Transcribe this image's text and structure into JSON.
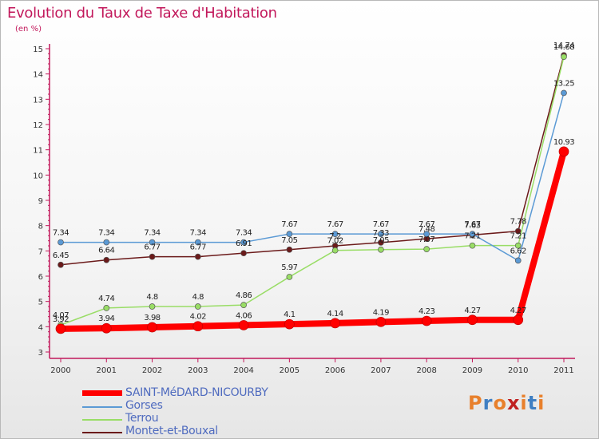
{
  "chart_data": {
    "type": "line",
    "title": "Evolution du Taux de Taxe d'Habitation",
    "unit_label": "(en %)",
    "x": [
      "2000",
      "2001",
      "2002",
      "2003",
      "2004",
      "2005",
      "2006",
      "2007",
      "2008",
      "2009",
      "2010",
      "2011"
    ],
    "ylim": [
      3,
      15
    ],
    "yticks": [
      3,
      4,
      5,
      6,
      7,
      8,
      9,
      10,
      11,
      12,
      13,
      14,
      15
    ],
    "grid": false,
    "legend_position": "bottom-left",
    "series": [
      {
        "name": "Montet-et-Bouxal",
        "color": "#6b1a1a",
        "values": [
          6.45,
          6.64,
          6.77,
          6.77,
          6.91,
          7.05,
          7.2,
          7.33,
          7.48,
          7.63,
          7.78,
          14.74
        ],
        "labels": [
          "6.45",
          "6.64",
          "6.77",
          "6.77",
          "6.91",
          "7.05",
          "7.2",
          "7.33",
          "7.48",
          "7.63",
          "7.78",
          "14.74"
        ]
      },
      {
        "name": "Terrou",
        "color": "#99dd66",
        "values": [
          4.07,
          4.74,
          4.8,
          4.8,
          4.86,
          5.97,
          7.02,
          7.05,
          7.07,
          7.21,
          7.21,
          14.68
        ],
        "labels": [
          "4.07",
          "4.74",
          "4.8",
          "4.8",
          "4.86",
          "5.97",
          "7.02",
          "7.05",
          "7.07",
          "7.21",
          "7.21",
          "14.68"
        ]
      },
      {
        "name": "Gorses",
        "color": "#5b9ad5",
        "values": [
          7.34,
          7.34,
          7.34,
          7.34,
          7.34,
          7.67,
          7.67,
          7.67,
          7.67,
          7.67,
          6.62,
          13.25
        ],
        "labels": [
          "7.34",
          "7.34",
          "7.34",
          "7.34",
          "7.34",
          "7.67",
          "7.67",
          "7.67",
          "7.67",
          "7.67",
          "6.62",
          "13.25"
        ]
      },
      {
        "name": "SAINT-MéDARD-NICOURBY",
        "color": "#ff0000",
        "values": [
          3.92,
          3.94,
          3.98,
          4.02,
          4.06,
          4.1,
          4.14,
          4.19,
          4.23,
          4.27,
          4.27,
          10.93
        ],
        "labels": [
          "3.92",
          "3.94",
          "3.98",
          "4.02",
          "4.06",
          "4.1",
          "4.14",
          "4.19",
          "4.23",
          "4.27",
          "4.27",
          "10.93"
        ]
      }
    ],
    "legend_order": [
      "SAINT-MéDARD-NICOURBY",
      "Gorses",
      "Terrou",
      "Montet-et-Bouxal"
    ]
  },
  "logo": {
    "text": "Proxiti",
    "colors": [
      "#e8802c",
      "#3f7fc3",
      "#e8802c",
      "#c02020",
      "#e8802c",
      "#3f7fc3",
      "#e8802c"
    ]
  }
}
